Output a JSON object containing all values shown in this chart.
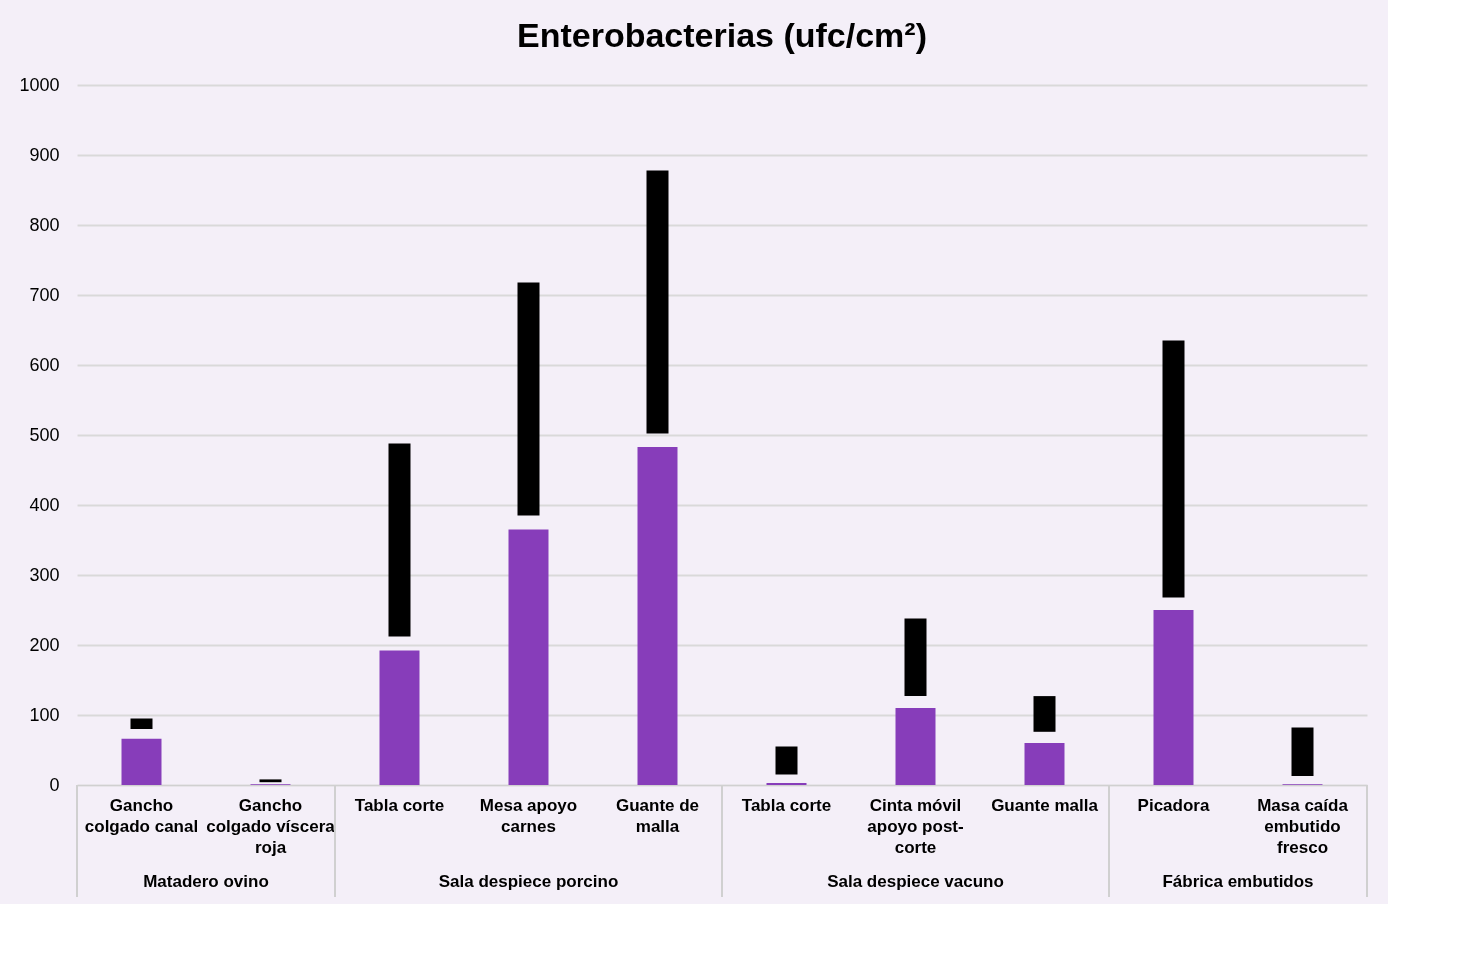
{
  "chart_data": {
    "type": "bar",
    "title": "Enterobacterias (ufc/cm²)",
    "categories": [
      [
        "Gancho",
        "colgado canal"
      ],
      [
        "Gancho",
        "colgado víscera",
        "roja"
      ],
      [
        "Tabla corte"
      ],
      [
        "Mesa apoyo",
        "carnes"
      ],
      [
        "Guante de",
        "malla"
      ],
      [
        "Tabla corte"
      ],
      [
        "Cinta móvil",
        "apoyo post-",
        "corte"
      ],
      [
        "Guante malla"
      ],
      [
        "Picadora"
      ],
      [
        "Masa caída",
        "embutido",
        "fresco"
      ]
    ],
    "values": [
      66,
      1,
      192,
      365,
      483,
      3,
      110,
      60,
      250,
      1
    ],
    "errors": [
      [
        80,
        95
      ],
      [
        4,
        8
      ],
      [
        212,
        488
      ],
      [
        385,
        718
      ],
      [
        502,
        878
      ],
      [
        15,
        55
      ],
      [
        127,
        238
      ],
      [
        76,
        127
      ],
      [
        268,
        635
      ],
      [
        13,
        82
      ]
    ],
    "color": "#873dba",
    "annotations": [
      "Matadero ovino",
      "Sala despiece porcino",
      "Sala despiece vacuno",
      "Fábrica embutidos"
    ],
    "ylim": [
      0,
      1000
    ],
    "yticks": [
      0,
      100,
      200,
      300,
      400,
      500,
      600,
      700,
      800,
      900,
      1000
    ],
    "grid": "y"
  }
}
